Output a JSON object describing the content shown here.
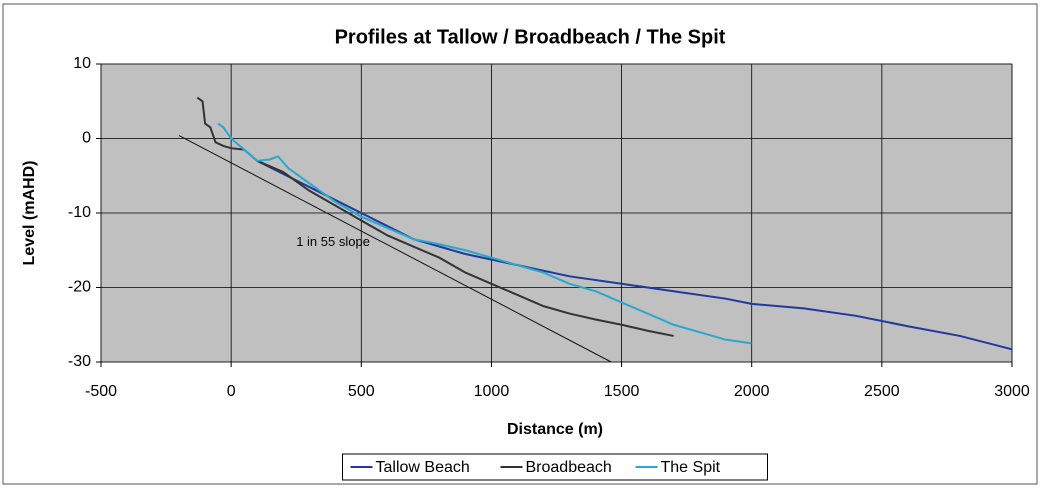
{
  "chart_data": {
    "type": "line",
    "title": "Profiles at Tallow / Broadbeach / The Spit",
    "xlabel": "Distance (m)",
    "ylabel": "Level (mAHD)",
    "xlim": [
      -500,
      3000
    ],
    "xticks": [
      -500,
      0,
      500,
      1000,
      1500,
      2000,
      2500,
      3000
    ],
    "ylim": [
      -30,
      10
    ],
    "yticks": [
      -30,
      -20,
      -10,
      0,
      10
    ],
    "grid": true,
    "legend": "bottom",
    "series": [
      {
        "name": "Tallow Beach",
        "color": "#1f3a9c",
        "x": [
          100,
          300,
          500,
          700,
          900,
          1100,
          1300,
          1500,
          1700,
          1900,
          2000,
          2200,
          2400,
          2500,
          2600,
          2800,
          3000
        ],
        "values": [
          -3,
          -6.5,
          -10,
          -13.5,
          -15.5,
          -17,
          -18.5,
          -19.5,
          -20.5,
          -21.5,
          -22.2,
          -22.8,
          -23.8,
          -24.5,
          -25.2,
          -26.5,
          -28.3
        ]
      },
      {
        "name": "Broadbeach",
        "color": "#333333",
        "x": [
          -130,
          -110,
          -100,
          -80,
          -60,
          -30,
          0,
          50,
          100,
          200,
          300,
          400,
          500,
          600,
          700,
          800,
          900,
          1000,
          1100,
          1200,
          1300,
          1400,
          1500,
          1600,
          1700
        ],
        "values": [
          5.5,
          5,
          2,
          1.5,
          -0.5,
          -1,
          -1.3,
          -1.5,
          -3,
          -4.5,
          -7,
          -9,
          -11,
          -13,
          -14.5,
          -16,
          -18,
          -19.5,
          -21,
          -22.5,
          -23.5,
          -24.3,
          -25,
          -25.8,
          -26.5
        ]
      },
      {
        "name": "The Spit",
        "color": "#2aa7cf",
        "x": [
          -50,
          -30,
          0,
          50,
          100,
          150,
          180,
          220,
          300,
          400,
          500,
          600,
          700,
          800,
          900,
          1000,
          1100,
          1200,
          1300,
          1400,
          1500,
          1600,
          1700,
          1800,
          1900,
          2000
        ],
        "values": [
          2,
          1.5,
          0,
          -1.5,
          -3,
          -2.8,
          -2.4,
          -4,
          -6,
          -8.5,
          -10.5,
          -12,
          -13.5,
          -14.2,
          -15,
          -16,
          -17,
          -18,
          -19.5,
          -20.5,
          -22,
          -23.5,
          -25,
          -26,
          -27,
          -27.5
        ]
      }
    ],
    "slope_line": {
      "x": [
        -200,
        1460
      ],
      "values": [
        0.4,
        -30
      ],
      "color": "#111111"
    },
    "annotation": {
      "text": "1 in 55 slope",
      "x": 250,
      "y": -14
    }
  }
}
